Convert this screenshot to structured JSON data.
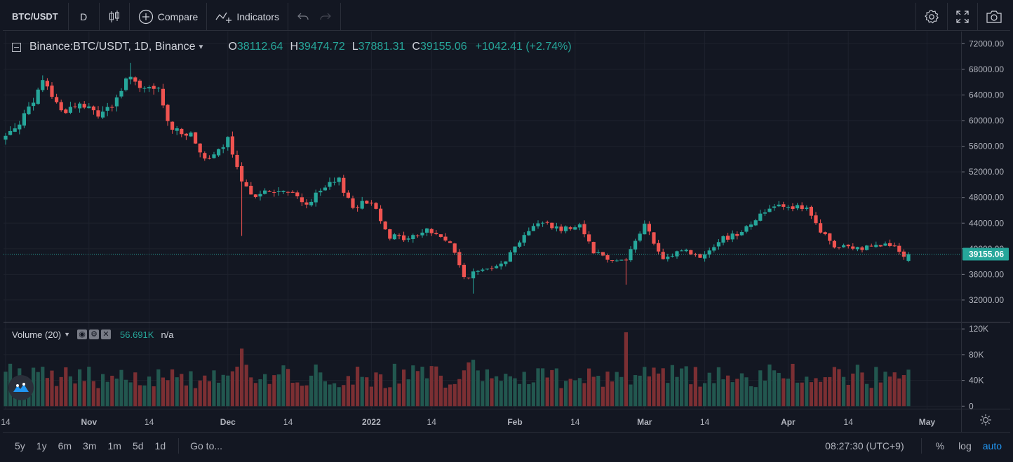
{
  "toolbar": {
    "symbol": "BTC/USDT",
    "interval": "D",
    "compare_label": "Compare",
    "indicators_label": "Indicators",
    "icons": [
      "candles-icon",
      "plus-circle-icon",
      "indicators-icon",
      "undo-icon",
      "redo-icon",
      "settings-icon",
      "fullscreen-icon",
      "camera-icon"
    ]
  },
  "legend": {
    "title": "Binance:BTC/USDT, 1D, Binance",
    "open_label": "O",
    "open": "38112.64",
    "high_label": "H",
    "high": "39474.72",
    "low_label": "L",
    "low": "37881.31",
    "close_label": "C",
    "close": "39155.06",
    "change": "+1042.41 (+2.74%)"
  },
  "volume_legend": {
    "label": "Volume (20)",
    "value": "56.691K",
    "ma": "n/a"
  },
  "bottom_bar": {
    "ranges": [
      "5y",
      "1y",
      "6m",
      "3m",
      "1m",
      "5d",
      "1d"
    ],
    "goto_label": "Go to...",
    "clock": "08:27:30 (UTC+9)",
    "percent_label": "%",
    "log_label": "log",
    "auto_label": "auto"
  },
  "colors": {
    "background": "#131722",
    "up": "#26a69a",
    "down": "#ef5350",
    "grid": "#1e222d",
    "text": "#d1d4dc",
    "axis_text": "#b2b5be",
    "accent": "#2196f3"
  },
  "chart_data": {
    "type": "candlestick",
    "title": "Binance:BTC/USDT, 1D, Binance",
    "price_axis": {
      "ylim": [
        28600,
        73900
      ],
      "ticks": [
        32000,
        36000,
        40000,
        44000,
        48000,
        52000,
        56000,
        60000,
        64000,
        68000,
        72000
      ],
      "tick_labels": [
        "32000.00",
        "36000.00",
        "40000.00",
        "44000.00",
        "48000.00",
        "52000.00",
        "56000.00",
        "60000.00",
        "64000.00",
        "68000.00",
        "72000.00"
      ]
    },
    "last_price": 39155.06,
    "last_price_label": "39155.06",
    "volume_axis": {
      "ylim": [
        -4000,
        130000
      ],
      "ticks": [
        0,
        40000,
        80000,
        120000
      ],
      "tick_labels": [
        "0",
        "40K",
        "80K",
        "120K"
      ]
    },
    "time_axis": {
      "day_count": 200,
      "ticks": [
        {
          "day": 0,
          "label": "14"
        },
        {
          "day": 18,
          "label": "Nov"
        },
        {
          "day": 31,
          "label": "14"
        },
        {
          "day": 48,
          "label": "Dec"
        },
        {
          "day": 61,
          "label": "14"
        },
        {
          "day": 79,
          "label": "2022"
        },
        {
          "day": 92,
          "label": "14"
        },
        {
          "day": 110,
          "label": "Feb"
        },
        {
          "day": 123,
          "label": "14"
        },
        {
          "day": 138,
          "label": "Mar"
        },
        {
          "day": 151,
          "label": "14"
        },
        {
          "day": 169,
          "label": "Apr"
        },
        {
          "day": 182,
          "label": "14"
        },
        {
          "day": 199,
          "label": "May"
        }
      ]
    },
    "key_points": [
      [
        0,
        57500
      ],
      [
        6,
        62500
      ],
      [
        8,
        66500
      ],
      [
        12,
        61500
      ],
      [
        16,
        62500
      ],
      [
        20,
        61000
      ],
      [
        24,
        63000
      ],
      [
        27,
        67500
      ],
      [
        29,
        64500
      ],
      [
        33,
        65000
      ],
      [
        35,
        59500
      ],
      [
        40,
        57500
      ],
      [
        44,
        53500
      ],
      [
        48,
        57000
      ],
      [
        51,
        50000
      ],
      [
        54,
        48500
      ],
      [
        58,
        49000
      ],
      [
        62,
        48500
      ],
      [
        65,
        47000
      ],
      [
        69,
        49500
      ],
      [
        72,
        50600
      ],
      [
        75,
        46500
      ],
      [
        79,
        47500
      ],
      [
        83,
        42000
      ],
      [
        87,
        41500
      ],
      [
        91,
        43000
      ],
      [
        96,
        41000
      ],
      [
        99,
        35500
      ],
      [
        104,
        37000
      ],
      [
        108,
        38300
      ],
      [
        112,
        42300
      ],
      [
        116,
        44300
      ],
      [
        120,
        43000
      ],
      [
        124,
        43900
      ],
      [
        127,
        39700
      ],
      [
        131,
        38200
      ],
      [
        134,
        38500
      ],
      [
        138,
        43800
      ],
      [
        142,
        38000
      ],
      [
        146,
        40000
      ],
      [
        150,
        38600
      ],
      [
        154,
        41300
      ],
      [
        158,
        42400
      ],
      [
        163,
        45200
      ],
      [
        166,
        47000
      ],
      [
        169,
        46800
      ],
      [
        173,
        46000
      ],
      [
        176,
        42800
      ],
      [
        179,
        40300
      ],
      [
        185,
        40000
      ],
      [
        188,
        41000
      ],
      [
        192,
        40200
      ],
      [
        194,
        38400
      ],
      [
        195,
        39155
      ]
    ],
    "candle_count": 196
  }
}
